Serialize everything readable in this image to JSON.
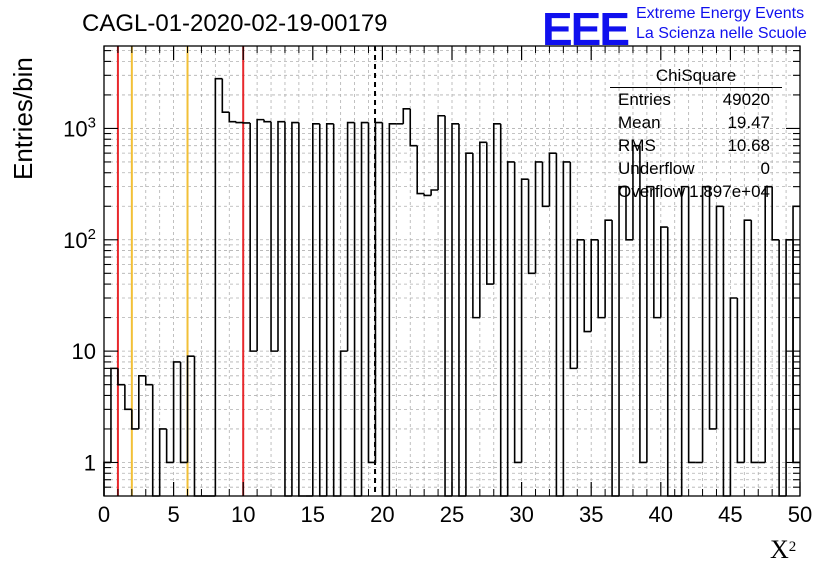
{
  "title": "CAGL-01-2020-02-19-00179",
  "logo": {
    "mark": "EEE",
    "line1": "Extreme Energy Events",
    "line2": "La Scienza nelle Scuole"
  },
  "stats": {
    "name": "ChiSquare",
    "rows": [
      {
        "key": "Entries",
        "value": "49020"
      },
      {
        "key": "Mean",
        "value": "19.47"
      },
      {
        "key": "RMS",
        "value": "10.68"
      },
      {
        "key": "Underflow",
        "value": "0"
      },
      {
        "key": "Overflow",
        "value": "1.897e+04"
      }
    ]
  },
  "chart_data": {
    "type": "bar",
    "subtype": "step-histogram",
    "xlabel": "X",
    "xlabel_superscript": "2",
    "ylabel": "Entries/bin",
    "xlim": [
      0,
      50
    ],
    "ylim": [
      0.5,
      5500
    ],
    "y_scale": "log",
    "grid": true,
    "bin_width": 0.5,
    "x_ticks": [
      "0",
      "5",
      "10",
      "15",
      "20",
      "25",
      "30",
      "35",
      "40",
      "45",
      "50"
    ],
    "y_ticks": [
      {
        "value": 1,
        "label": "1"
      },
      {
        "value": 10,
        "label": "10"
      },
      {
        "value": 100,
        "label": "10",
        "exp": "2"
      },
      {
        "value": 1000,
        "label": "10",
        "exp": "3"
      }
    ],
    "values": [
      1,
      7,
      5,
      3,
      2,
      6,
      5,
      0,
      2,
      1,
      8,
      1,
      9,
      0,
      0,
      0,
      2800,
      1400,
      1150,
      1130,
      1120,
      10,
      1200,
      1150,
      10,
      1150,
      0,
      1130,
      0,
      0,
      1100,
      0,
      1100,
      0,
      10,
      1130,
      0,
      1130,
      1,
      1130,
      0,
      1100,
      1100,
      1500,
      700,
      260,
      250,
      280,
      1300,
      0,
      1100,
      0,
      600,
      20,
      750,
      40,
      1100,
      0,
      500,
      1,
      350,
      50,
      500,
      200,
      600,
      0,
      500,
      7,
      100,
      15,
      100,
      20,
      150,
      0,
      300,
      100,
      700,
      1,
      300,
      20,
      130,
      0,
      0,
      300,
      1,
      1,
      300,
      2,
      200,
      0,
      30,
      1,
      150,
      1,
      1,
      300,
      100,
      0,
      100,
      1
    ],
    "overflow_partial_bin": {
      "x0": 49.5,
      "x1": 50,
      "value": 200
    },
    "vertical_lines": [
      {
        "x": 1,
        "color": "#e8282c",
        "style": "solid"
      },
      {
        "x": 2,
        "color": "#f2c037",
        "style": "solid"
      },
      {
        "x": 6,
        "color": "#f2c037",
        "style": "solid"
      },
      {
        "x": 10,
        "color": "#e8282c",
        "style": "solid"
      },
      {
        "x": 19.47,
        "color": "#000000",
        "style": "dashed"
      }
    ]
  }
}
